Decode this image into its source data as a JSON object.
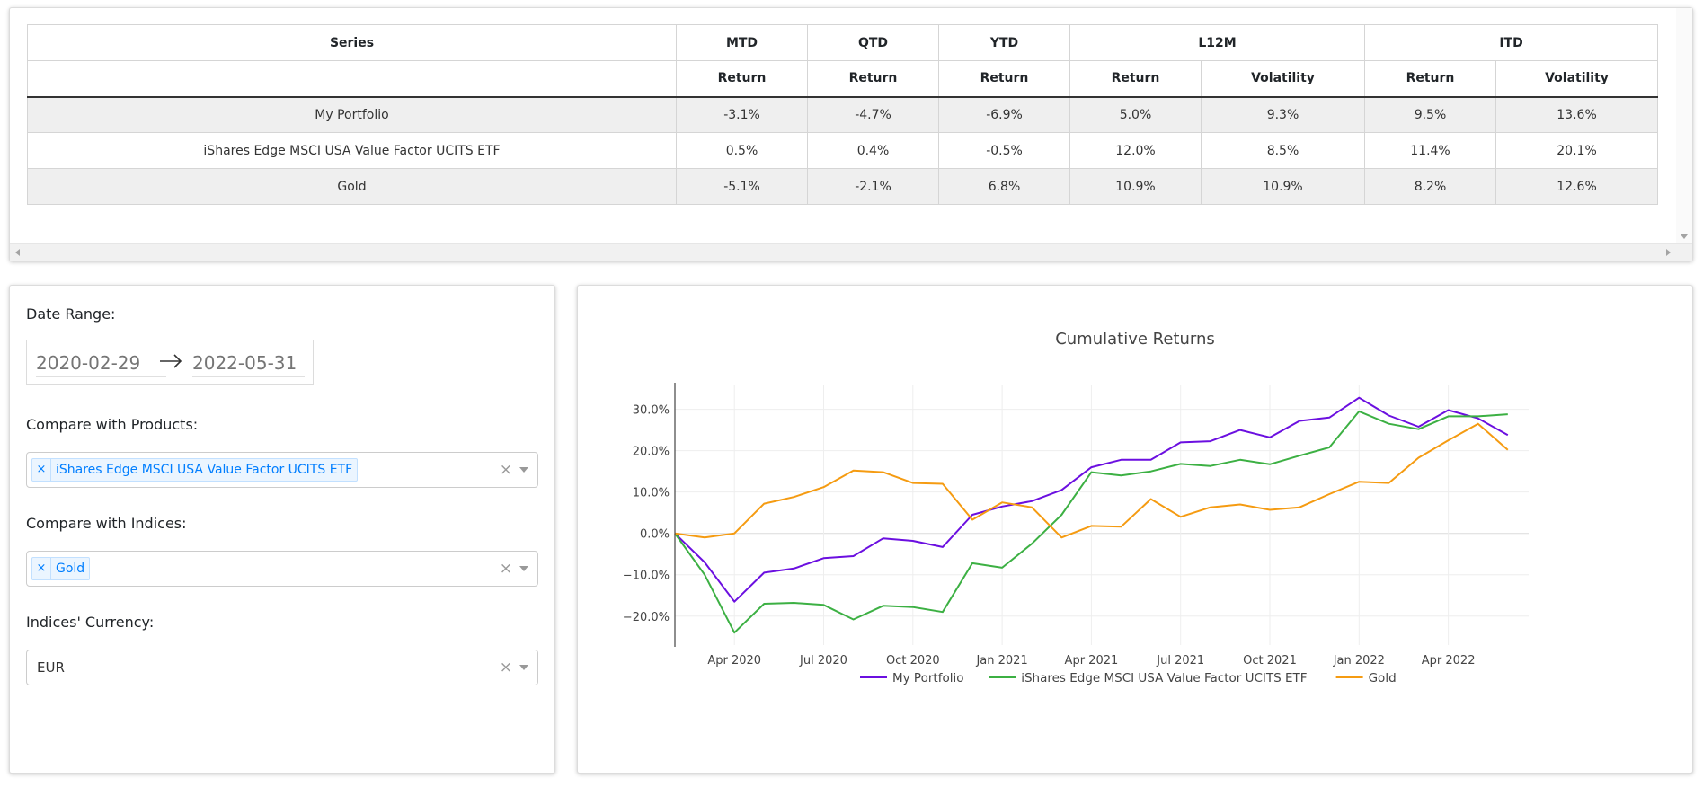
{
  "table": {
    "header_top": [
      "Series",
      "MTD",
      "QTD",
      "YTD",
      "L12M",
      "ITD"
    ],
    "header_sub": [
      "",
      "Return",
      "Return",
      "Return",
      "Return",
      "Volatility",
      "Return",
      "Volatility"
    ],
    "rows": [
      [
        "My Portfolio",
        "-3.1%",
        "-4.7%",
        "-6.9%",
        "5.0%",
        "9.3%",
        "9.5%",
        "13.6%"
      ],
      [
        "iShares Edge MSCI USA Value Factor UCITS ETF",
        "0.5%",
        "0.4%",
        "-0.5%",
        "12.0%",
        "8.5%",
        "11.4%",
        "20.1%"
      ],
      [
        "Gold",
        "-5.1%",
        "-2.1%",
        "6.8%",
        "10.9%",
        "10.9%",
        "8.2%",
        "12.6%"
      ]
    ]
  },
  "filters": {
    "date_range_label": "Date Range:",
    "start_date": "2020-02-29",
    "end_date": "2022-05-31",
    "products_label": "Compare with Products:",
    "products_selected": [
      "iShares Edge MSCI USA Value Factor UCITS ETF"
    ],
    "indices_label": "Compare with Indices:",
    "indices_selected": [
      "Gold"
    ],
    "currency_label": "Indices' Currency:",
    "currency_value": "EUR",
    "chip_remove_glyph": "×",
    "clear_glyph": "×"
  },
  "chart_data": {
    "type": "line",
    "title": "Cumulative Returns",
    "xlabel": "",
    "ylabel": "",
    "ylim": [
      -27,
      36
    ],
    "yticks": [
      -20,
      -10,
      0,
      10,
      20,
      30
    ],
    "ytick_labels": [
      "−20.0%",
      "−10.0%",
      "0.0%",
      "10.0%",
      "20.0%",
      "30.0%"
    ],
    "xlim": [
      0,
      27.7
    ],
    "xticks": [
      1,
      4,
      7,
      10,
      13,
      16,
      19,
      22,
      25
    ],
    "xtick_labels": [
      "Apr 2020",
      "Jul 2020",
      "Oct 2020",
      "Jan 2021",
      "Apr 2021",
      "Jul 2021",
      "Oct 2021",
      "Jan 2022",
      "Apr 2022"
    ],
    "x": [
      -1,
      0,
      1,
      2,
      3,
      4,
      5,
      6,
      7,
      8,
      9,
      10,
      11,
      12,
      13,
      14,
      15,
      16,
      17,
      18,
      19,
      20,
      21,
      22,
      23,
      24,
      25,
      26,
      27
    ],
    "legend_position": "bottom-center",
    "series": [
      {
        "name": "My Portfolio",
        "color": "#6b0fe0",
        "values": [
          0.0,
          -7.0,
          -16.5,
          -9.5,
          -8.5,
          -6.0,
          -5.5,
          -1.2,
          -1.8,
          -3.3,
          4.5,
          6.5,
          7.8,
          10.5,
          16.0,
          17.8,
          17.8,
          22.0,
          22.3,
          25.0,
          23.2,
          27.2,
          28.0,
          32.8,
          28.5,
          25.8,
          29.8,
          27.8,
          23.8
        ]
      },
      {
        "name": "iShares Edge MSCI USA Value Factor UCITS ETF",
        "color": "#3cb043",
        "values": [
          0.0,
          -10.0,
          -24.0,
          -17.0,
          -16.8,
          -17.3,
          -20.8,
          -17.5,
          -17.8,
          -19.0,
          -7.2,
          -8.3,
          -2.5,
          4.5,
          14.8,
          14.0,
          15.0,
          16.8,
          16.3,
          17.8,
          16.7,
          18.8,
          20.8,
          29.5,
          26.5,
          25.2,
          28.3,
          28.3,
          28.8
        ]
      },
      {
        "name": "Gold",
        "color": "#f59b11",
        "values": [
          0.0,
          -1.0,
          0.0,
          7.2,
          8.8,
          11.2,
          15.2,
          14.8,
          12.2,
          12.0,
          3.3,
          7.5,
          6.3,
          -1.0,
          1.8,
          1.6,
          8.3,
          4.0,
          6.3,
          7.0,
          5.7,
          6.3,
          9.5,
          12.5,
          12.2,
          18.3,
          22.5,
          26.5,
          20.2
        ]
      }
    ]
  }
}
